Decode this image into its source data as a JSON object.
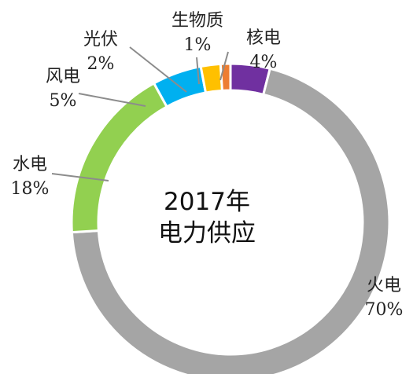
{
  "chart_data": {
    "type": "pie",
    "style": "donut",
    "center_text": [
      "2017年",
      "电力供应"
    ],
    "categories": [
      "核电",
      "火电",
      "水电",
      "风电",
      "光伏",
      "生物质"
    ],
    "values": [
      4,
      70,
      18,
      5,
      2,
      1
    ],
    "value_labels": [
      "4%",
      "70%",
      "18%",
      "5%",
      "2%",
      "1%"
    ],
    "colors": [
      "#7030a0",
      "#a5a5a5",
      "#92d050",
      "#00b0f0",
      "#ffc000",
      "#ed7d31"
    ],
    "start_angle_deg": 0,
    "direction": "clockwise",
    "legend": "none"
  }
}
